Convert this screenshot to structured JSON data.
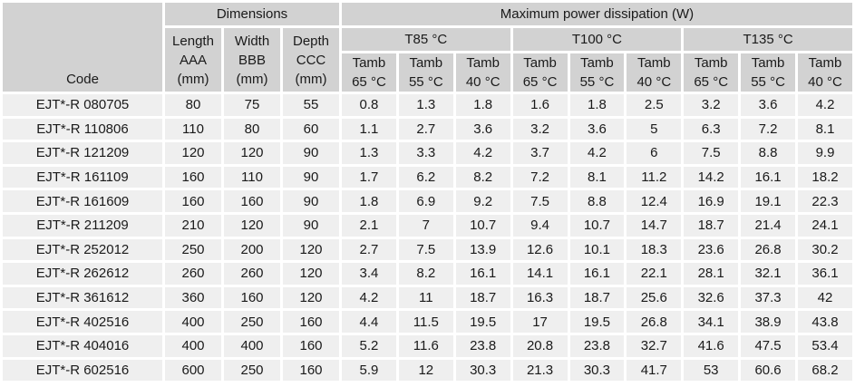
{
  "table": {
    "corner_label": "Code",
    "group_headers": {
      "dimensions": "Dimensions",
      "power": "Maximum power dissipation (W)"
    },
    "dimension_columns": [
      "Length\nAAA\n(mm)",
      "Width\nBBB\n(mm)",
      "Depth\nCCC\n(mm)"
    ],
    "temperature_groups": [
      "T85 °C",
      "T100 °C",
      "T135 °C"
    ],
    "tamb_columns": [
      "Tamb\n65 °C",
      "Tamb\n55 °C",
      "Tamb\n40 °C",
      "Tamb\n65 °C",
      "Tamb\n55 °C",
      "Tamb\n40 °C",
      "Tamb\n65 °C",
      "Tamb\n55 °C",
      "Tamb\n40 °C"
    ],
    "rows": [
      {
        "code": "EJT*-R 080705",
        "values": [
          "80",
          "75",
          "55",
          "0.8",
          "1.3",
          "1.8",
          "1.6",
          "1.8",
          "2.5",
          "3.2",
          "3.6",
          "4.2"
        ]
      },
      {
        "code": "EJT*-R 110806",
        "values": [
          "110",
          "80",
          "60",
          "1.1",
          "2.7",
          "3.6",
          "3.2",
          "3.6",
          "5",
          "6.3",
          "7.2",
          "8.1"
        ]
      },
      {
        "code": "EJT*-R 121209",
        "values": [
          "120",
          "120",
          "90",
          "1.3",
          "3.3",
          "4.2",
          "3.7",
          "4.2",
          "6",
          "7.5",
          "8.8",
          "9.9"
        ]
      },
      {
        "code": "EJT*-R 161109",
        "values": [
          "160",
          "110",
          "90",
          "1.7",
          "6.2",
          "8.2",
          "7.2",
          "8.1",
          "11.2",
          "14.2",
          "16.1",
          "18.2"
        ]
      },
      {
        "code": "EJT*-R 161609",
        "values": [
          "160",
          "160",
          "90",
          "1.8",
          "6.9",
          "9.2",
          "7.5",
          "8.8",
          "12.4",
          "16.9",
          "19.1",
          "22.3"
        ]
      },
      {
        "code": "EJT*-R 211209",
        "values": [
          "210",
          "120",
          "90",
          "2.1",
          "7",
          "10.7",
          "9.4",
          "10.7",
          "14.7",
          "18.7",
          "21.4",
          "24.1"
        ]
      },
      {
        "code": "EJT*-R 252012",
        "values": [
          "250",
          "200",
          "120",
          "2.7",
          "7.5",
          "13.9",
          "12.6",
          "10.1",
          "18.3",
          "23.6",
          "26.8",
          "30.2"
        ]
      },
      {
        "code": "EJT*-R 262612",
        "values": [
          "260",
          "260",
          "120",
          "3.4",
          "8.2",
          "16.1",
          "14.1",
          "16.1",
          "22.1",
          "28.1",
          "32.1",
          "36.1"
        ]
      },
      {
        "code": "EJT*-R 361612",
        "values": [
          "360",
          "160",
          "120",
          "4.2",
          "11",
          "18.7",
          "16.3",
          "18.7",
          "25.6",
          "32.6",
          "37.3",
          "42"
        ]
      },
      {
        "code": "EJT*-R 402516",
        "values": [
          "400",
          "250",
          "160",
          "4.4",
          "11.5",
          "19.5",
          "17",
          "19.5",
          "26.8",
          "34.1",
          "38.9",
          "43.8"
        ]
      },
      {
        "code": "EJT*-R 404016",
        "values": [
          "400",
          "400",
          "160",
          "5.2",
          "11.6",
          "23.8",
          "20.8",
          "23.8",
          "32.7",
          "41.6",
          "47.5",
          "53.4"
        ]
      },
      {
        "code": "EJT*-R 602516",
        "values": [
          "600",
          "250",
          "160",
          "5.9",
          "12",
          "30.3",
          "21.3",
          "30.3",
          "41.7",
          "53",
          "60.6",
          "68.2"
        ]
      }
    ]
  },
  "colors": {
    "header_bg": "#d2d2d2",
    "cell_bg": "#efefef",
    "grid": "#ffffff",
    "text": "#1a1a1a"
  }
}
